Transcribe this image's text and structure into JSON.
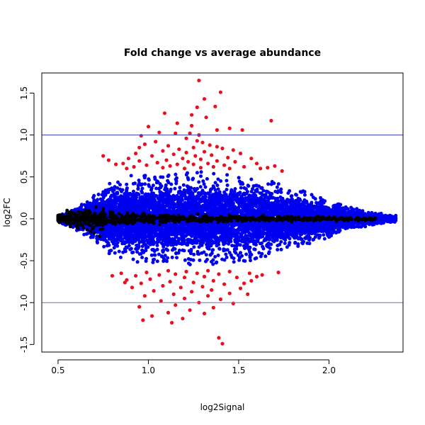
{
  "chart_data": {
    "type": "scatter",
    "title": "Fold change vs average abundance",
    "xlabel": "log2Signal",
    "ylabel": "log2FC",
    "xlim": [
      0.41,
      2.41
    ],
    "ylim": [
      -1.59,
      1.74
    ],
    "xticks": [
      0.5,
      1.0,
      1.5,
      2.0
    ],
    "xtick_labels": [
      "0.5",
      "1.0",
      "1.5",
      "2.0"
    ],
    "yticks": [
      -1.5,
      -1.0,
      -0.5,
      0.0,
      0.5,
      1.0,
      1.5
    ],
    "ytick_labels": [
      "-1.5",
      "-1.0",
      "-0.5",
      "0.0",
      "0.5",
      "1.0",
      "1.5"
    ],
    "hlines": [
      {
        "y": 1.0,
        "color": "#3b3bb0"
      },
      {
        "y": -1.0,
        "color": "#6b6be0"
      }
    ],
    "grid": false,
    "series_colors": {
      "significant": "#e8101e",
      "moderate": "#0000f0",
      "unchanged": "#000000"
    },
    "series": [
      {
        "color": "#e8101e",
        "points": [
          [
            1.28,
            1.65
          ],
          [
            1.4,
            1.51
          ],
          [
            1.31,
            1.43
          ],
          [
            1.37,
            1.34
          ],
          [
            1.27,
            1.33
          ],
          [
            1.09,
            1.26
          ],
          [
            1.24,
            1.24
          ],
          [
            1.32,
            1.21
          ],
          [
            1.68,
            1.17
          ],
          [
            1.16,
            1.14
          ],
          [
            1.24,
            1.11
          ],
          [
            1.0,
            1.1
          ],
          [
            1.45,
            1.08
          ],
          [
            1.38,
            1.06
          ],
          [
            1.52,
            1.06
          ],
          [
            1.06,
            1.03
          ],
          [
            1.15,
            1.02
          ],
          [
            1.23,
            1.02
          ],
          [
            1.28,
            1.0
          ],
          [
            0.96,
            0.99
          ],
          [
            1.21,
            0.96
          ],
          [
            1.27,
            0.93
          ],
          [
            1.04,
            0.92
          ],
          [
            1.3,
            0.91
          ],
          [
            0.98,
            0.89
          ],
          [
            1.34,
            0.88
          ],
          [
            1.11,
            0.87
          ],
          [
            1.25,
            0.85
          ],
          [
            1.38,
            0.86
          ],
          [
            0.95,
            0.85
          ],
          [
            1.41,
            0.84
          ],
          [
            1.17,
            0.83
          ],
          [
            1.08,
            0.81
          ],
          [
            1.47,
            0.82
          ],
          [
            1.31,
            0.8
          ],
          [
            1.21,
            0.79
          ],
          [
            1.51,
            0.78
          ],
          [
            0.93,
            0.78
          ],
          [
            1.14,
            0.77
          ],
          [
            1.35,
            0.76
          ],
          [
            1.26,
            0.75
          ],
          [
            1.02,
            0.75
          ],
          [
            1.44,
            0.73
          ],
          [
            1.19,
            0.72
          ],
          [
            0.89,
            0.72
          ],
          [
            1.57,
            0.72
          ],
          [
            1.29,
            0.71
          ],
          [
            1.1,
            0.7
          ],
          [
            1.38,
            0.69
          ],
          [
            0.95,
            0.69
          ],
          [
            1.22,
            0.68
          ],
          [
            1.48,
            0.68
          ],
          [
            1.05,
            0.67
          ],
          [
            1.33,
            0.66
          ],
          [
            0.86,
            0.66
          ],
          [
            1.16,
            0.65
          ],
          [
            1.25,
            0.65
          ],
          [
            1.42,
            0.64
          ],
          [
            0.99,
            0.64
          ],
          [
            0.75,
            0.75
          ],
          [
            0.78,
            0.7
          ],
          [
            0.82,
            0.65
          ],
          [
            1.6,
            0.66
          ],
          [
            1.7,
            0.63
          ],
          [
            1.66,
            0.61
          ],
          [
            1.12,
            0.63
          ],
          [
            1.36,
            0.62
          ],
          [
            0.92,
            0.62
          ],
          [
            1.53,
            0.62
          ],
          [
            1.29,
            0.61
          ],
          [
            1.08,
            0.61
          ],
          [
            1.62,
            0.6
          ],
          [
            1.2,
            0.6
          ],
          [
            0.88,
            0.6
          ],
          [
            1.45,
            0.6
          ],
          [
            1.74,
            0.57
          ],
          [
            1.11,
            -0.62
          ],
          [
            1.21,
            -0.63
          ],
          [
            1.33,
            -0.62
          ],
          [
            1.45,
            -0.63
          ],
          [
            0.99,
            -0.64
          ],
          [
            1.27,
            -0.65
          ],
          [
            0.85,
            -0.65
          ],
          [
            1.56,
            -0.65
          ],
          [
            1.15,
            -0.66
          ],
          [
            1.39,
            -0.66
          ],
          [
            1.06,
            -0.67
          ],
          [
            0.93,
            -0.68
          ],
          [
            1.63,
            -0.67
          ],
          [
            1.31,
            -0.69
          ],
          [
            1.2,
            -0.7
          ],
          [
            1.49,
            -0.7
          ],
          [
            1.01,
            -0.72
          ],
          [
            0.88,
            -0.73
          ],
          [
            1.36,
            -0.74
          ],
          [
            1.12,
            -0.75
          ],
          [
            1.25,
            -0.76
          ],
          [
            1.57,
            -0.74
          ],
          [
            0.96,
            -0.77
          ],
          [
            1.42,
            -0.78
          ],
          [
            1.08,
            -0.8
          ],
          [
            1.3,
            -0.81
          ],
          [
            1.18,
            -0.82
          ],
          [
            0.91,
            -0.82
          ],
          [
            1.51,
            -0.83
          ],
          [
            1.35,
            -0.85
          ],
          [
            1.03,
            -0.86
          ],
          [
            1.24,
            -0.87
          ],
          [
            1.45,
            -0.89
          ],
          [
            1.14,
            -0.9
          ],
          [
            0.98,
            -0.92
          ],
          [
            1.33,
            -0.92
          ],
          [
            1.2,
            -0.95
          ],
          [
            1.4,
            -0.96
          ],
          [
            1.07,
            -0.98
          ],
          [
            1.28,
            -1.0
          ],
          [
            1.47,
            -1.01
          ],
          [
            1.15,
            -1.03
          ],
          [
            0.95,
            -1.05
          ],
          [
            1.36,
            -1.06
          ],
          [
            1.23,
            -1.09
          ],
          [
            1.11,
            -1.12
          ],
          [
            1.31,
            -1.13
          ],
          [
            1.02,
            -1.16
          ],
          [
            1.19,
            -1.19
          ],
          [
            0.97,
            -1.21
          ],
          [
            1.13,
            -1.24
          ],
          [
            1.39,
            -1.42
          ],
          [
            1.41,
            -1.49
          ],
          [
            0.87,
            -0.76
          ],
          [
            1.6,
            -0.69
          ],
          [
            1.72,
            -0.64
          ],
          [
            0.8,
            -0.68
          ],
          [
            1.53,
            -0.77
          ],
          [
            1.55,
            -0.9
          ]
        ]
      },
      {
        "color": "#0000f0",
        "shape": {
          "x_start": 0.5,
          "x_end": 2.37,
          "profile": [
            [
              0.5,
              0.04
            ],
            [
              0.55,
              0.08
            ],
            [
              0.6,
              0.14
            ],
            [
              0.65,
              0.2
            ],
            [
              0.7,
              0.29
            ],
            [
              0.75,
              0.38
            ],
            [
              0.8,
              0.45
            ],
            [
              0.9,
              0.53
            ],
            [
              1.0,
              0.56
            ],
            [
              1.1,
              0.56
            ],
            [
              1.2,
              0.56
            ],
            [
              1.3,
              0.56
            ],
            [
              1.4,
              0.55
            ],
            [
              1.5,
              0.53
            ],
            [
              1.6,
              0.5
            ],
            [
              1.7,
              0.44
            ],
            [
              1.8,
              0.38
            ],
            [
              1.9,
              0.3
            ],
            [
              2.0,
              0.23
            ],
            [
              2.1,
              0.15
            ],
            [
              2.2,
              0.1
            ],
            [
              2.3,
              0.06
            ],
            [
              2.37,
              0.04
            ]
          ]
        }
      },
      {
        "color": "#000000",
        "shape": {
          "x_start": 0.5,
          "x_end": 2.26,
          "profile": [
            [
              0.5,
              0.02
            ],
            [
              0.55,
              0.03
            ],
            [
              0.6,
              0.04
            ],
            [
              0.7,
              0.04
            ],
            [
              0.8,
              0.04
            ],
            [
              0.9,
              0.03
            ],
            [
              1.0,
              0.03
            ],
            [
              1.2,
              0.02
            ],
            [
              1.5,
              0.015
            ],
            [
              1.8,
              0.012
            ],
            [
              2.1,
              0.01
            ],
            [
              2.26,
              0.01
            ]
          ],
          "outliers": [
            [
              0.55,
              0.1
            ],
            [
              0.58,
              0.07
            ],
            [
              0.62,
              0.08
            ],
            [
              0.6,
              -0.09
            ],
            [
              0.64,
              -0.11
            ],
            [
              0.66,
              -0.13
            ],
            [
              0.68,
              -0.15
            ],
            [
              0.7,
              -0.17
            ],
            [
              0.73,
              -0.21
            ],
            [
              0.75,
              0.12
            ],
            [
              0.71,
              0.14
            ],
            [
              0.67,
              0.1
            ],
            [
              2.0,
              0.02
            ],
            [
              2.05,
              -0.01
            ]
          ]
        }
      }
    ]
  }
}
